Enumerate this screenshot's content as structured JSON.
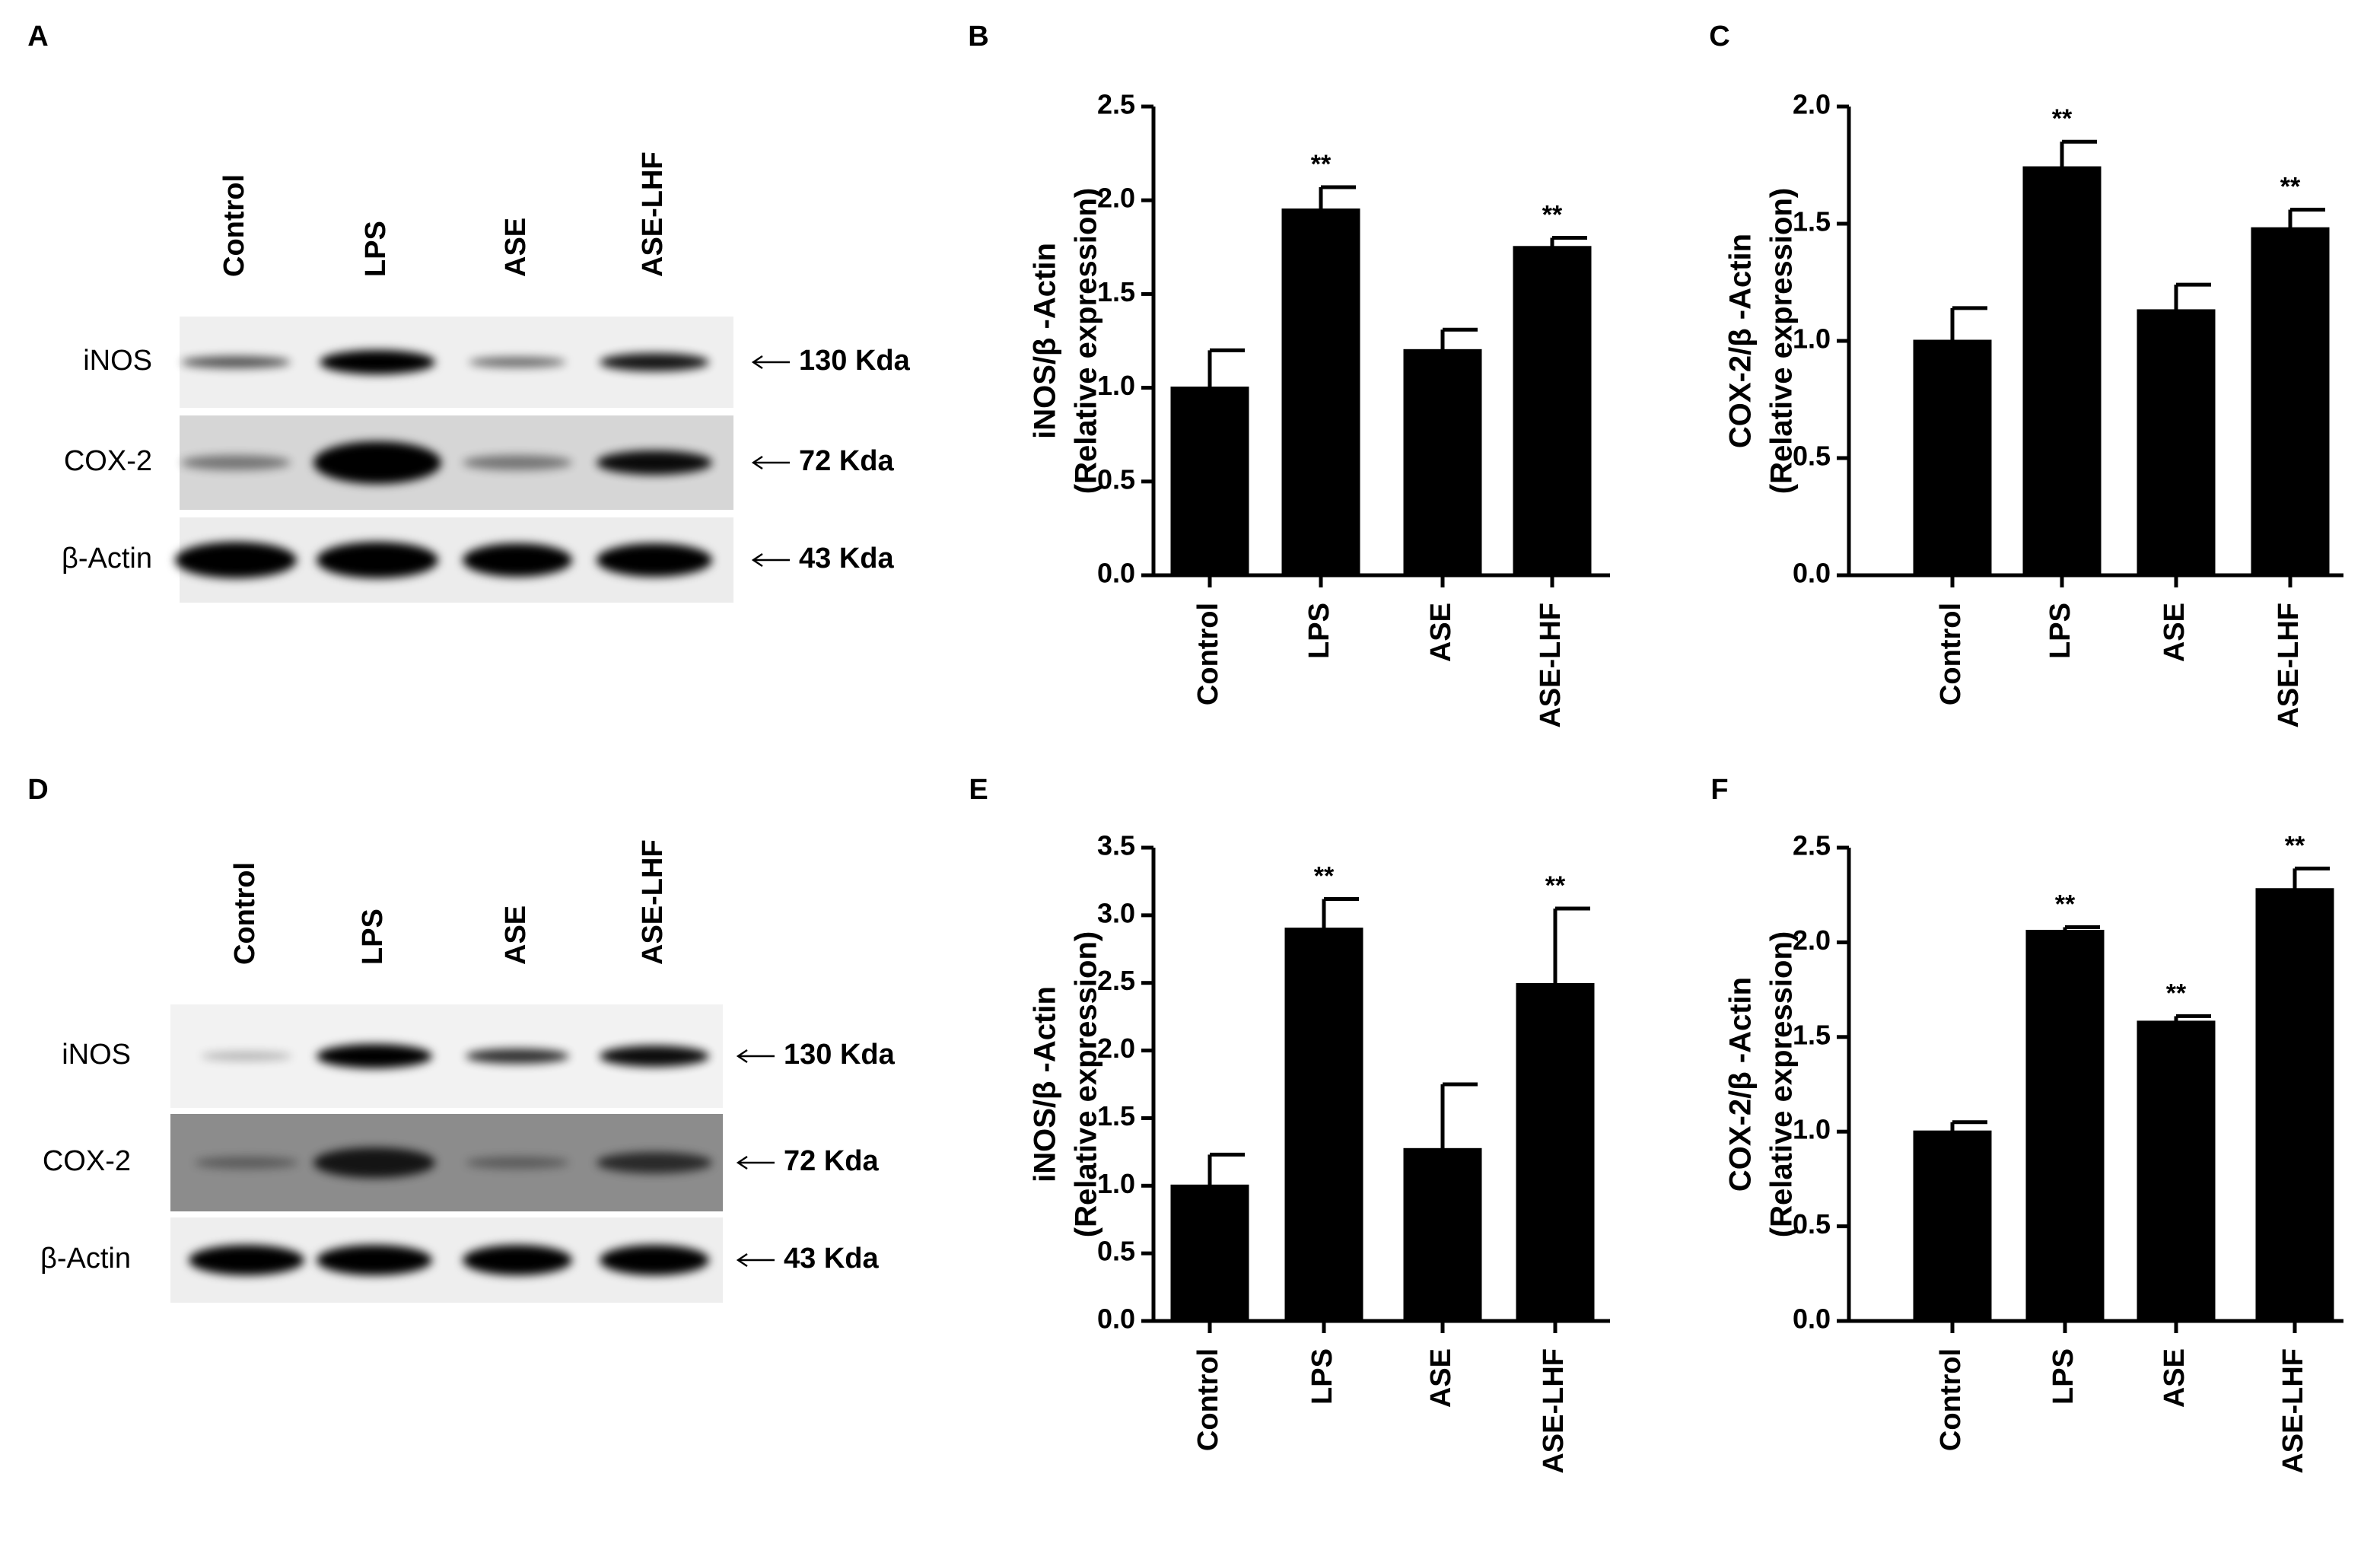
{
  "blots": [
    {
      "panel": "A",
      "lanes": [
        "Control",
        "LPS",
        "ASE",
        "ASE-LHF"
      ],
      "rows": [
        {
          "label": "iNOS",
          "size": "130 Kda"
        },
        {
          "label": "COX-2",
          "size": "72 Kda"
        },
        {
          "label": "β-Actin",
          "size": "43 Kda"
        }
      ]
    },
    {
      "panel": "D",
      "lanes": [
        "Control",
        "LPS",
        "ASE",
        "ASE-LHF"
      ],
      "rows": [
        {
          "label": "iNOS",
          "size": "130 Kda"
        },
        {
          "label": "COX-2",
          "size": "72 Kda"
        },
        {
          "label": "β-Actin",
          "size": "43 Kda"
        }
      ]
    }
  ],
  "chart_data": [
    {
      "type": "bar",
      "panel": "B",
      "ylabel": [
        "iNOS/β -Actin",
        "(Relative expression)"
      ],
      "categories": [
        "Control",
        "LPS",
        "ASE",
        "ASE-LHF"
      ],
      "values": [
        1.0,
        1.95,
        1.2,
        1.75
      ],
      "errors": [
        0.2,
        0.12,
        0.11,
        0.05
      ],
      "annotations": [
        null,
        "**",
        null,
        "**"
      ],
      "color": "#000000",
      "ylim": [
        0,
        2.5
      ],
      "yticks": [
        {
          "value": 0,
          "label": "0.0"
        },
        0.5,
        {
          "value": 1,
          "label": "1.0"
        },
        1.5,
        {
          "value": 2,
          "label": "2.0"
        },
        2.5
      ]
    },
    {
      "type": "bar",
      "panel": "C",
      "ylabel": [
        "COX-2/β -Actin",
        "(Relative expression)"
      ],
      "categories": [
        "Control",
        "LPS",
        "ASE",
        "ASE-LHF"
      ],
      "values": [
        1.0,
        1.74,
        1.13,
        1.48
      ],
      "errors": [
        0.14,
        0.11,
        0.11,
        0.08
      ],
      "annotations": [
        null,
        "**",
        null,
        "**"
      ],
      "color": "#000000",
      "ylim": [
        0,
        2
      ],
      "yticks": [
        {
          "value": 0,
          "label": "0.0"
        },
        0.5,
        {
          "value": 1,
          "label": "1.0"
        },
        1.5,
        {
          "value": 2,
          "label": "2.0"
        }
      ]
    },
    {
      "type": "bar",
      "panel": "E",
      "ylabel": [
        "iNOS/β -Actin",
        "(Relative expression)"
      ],
      "categories": [
        "Control",
        "LPS",
        "ASE",
        "ASE-LHF"
      ],
      "values": [
        1.0,
        2.9,
        1.27,
        2.49
      ],
      "errors": [
        0.23,
        0.22,
        0.48,
        0.56
      ],
      "annotations": [
        null,
        "**",
        null,
        "**"
      ],
      "color": "#000000",
      "ylim": [
        0,
        3.5
      ],
      "yticks": [
        {
          "value": 0,
          "label": "0.0"
        },
        0.5,
        {
          "value": 1,
          "label": "1.0"
        },
        1.5,
        {
          "value": 2,
          "label": "2.0"
        },
        2.5,
        {
          "value": 3,
          "label": "3.0"
        },
        3.5
      ]
    },
    {
      "type": "bar",
      "panel": "F",
      "ylabel": [
        "COX-2/β -Actin",
        "(Relative expression)"
      ],
      "categories": [
        "Control",
        "LPS",
        "ASE",
        "ASE-LHF"
      ],
      "values": [
        1.0,
        2.06,
        1.58,
        2.28
      ],
      "errors": [
        0.05,
        0.02,
        0.03,
        0.11
      ],
      "annotations": [
        null,
        "**",
        "**",
        "**"
      ],
      "color": "#000000",
      "ylim": [
        0,
        2.5
      ],
      "yticks": [
        {
          "value": 0,
          "label": "0.0"
        },
        0.5,
        {
          "value": 1,
          "label": "1.0"
        },
        1.5,
        {
          "value": 2,
          "label": "2.0"
        },
        2.5
      ]
    }
  ]
}
